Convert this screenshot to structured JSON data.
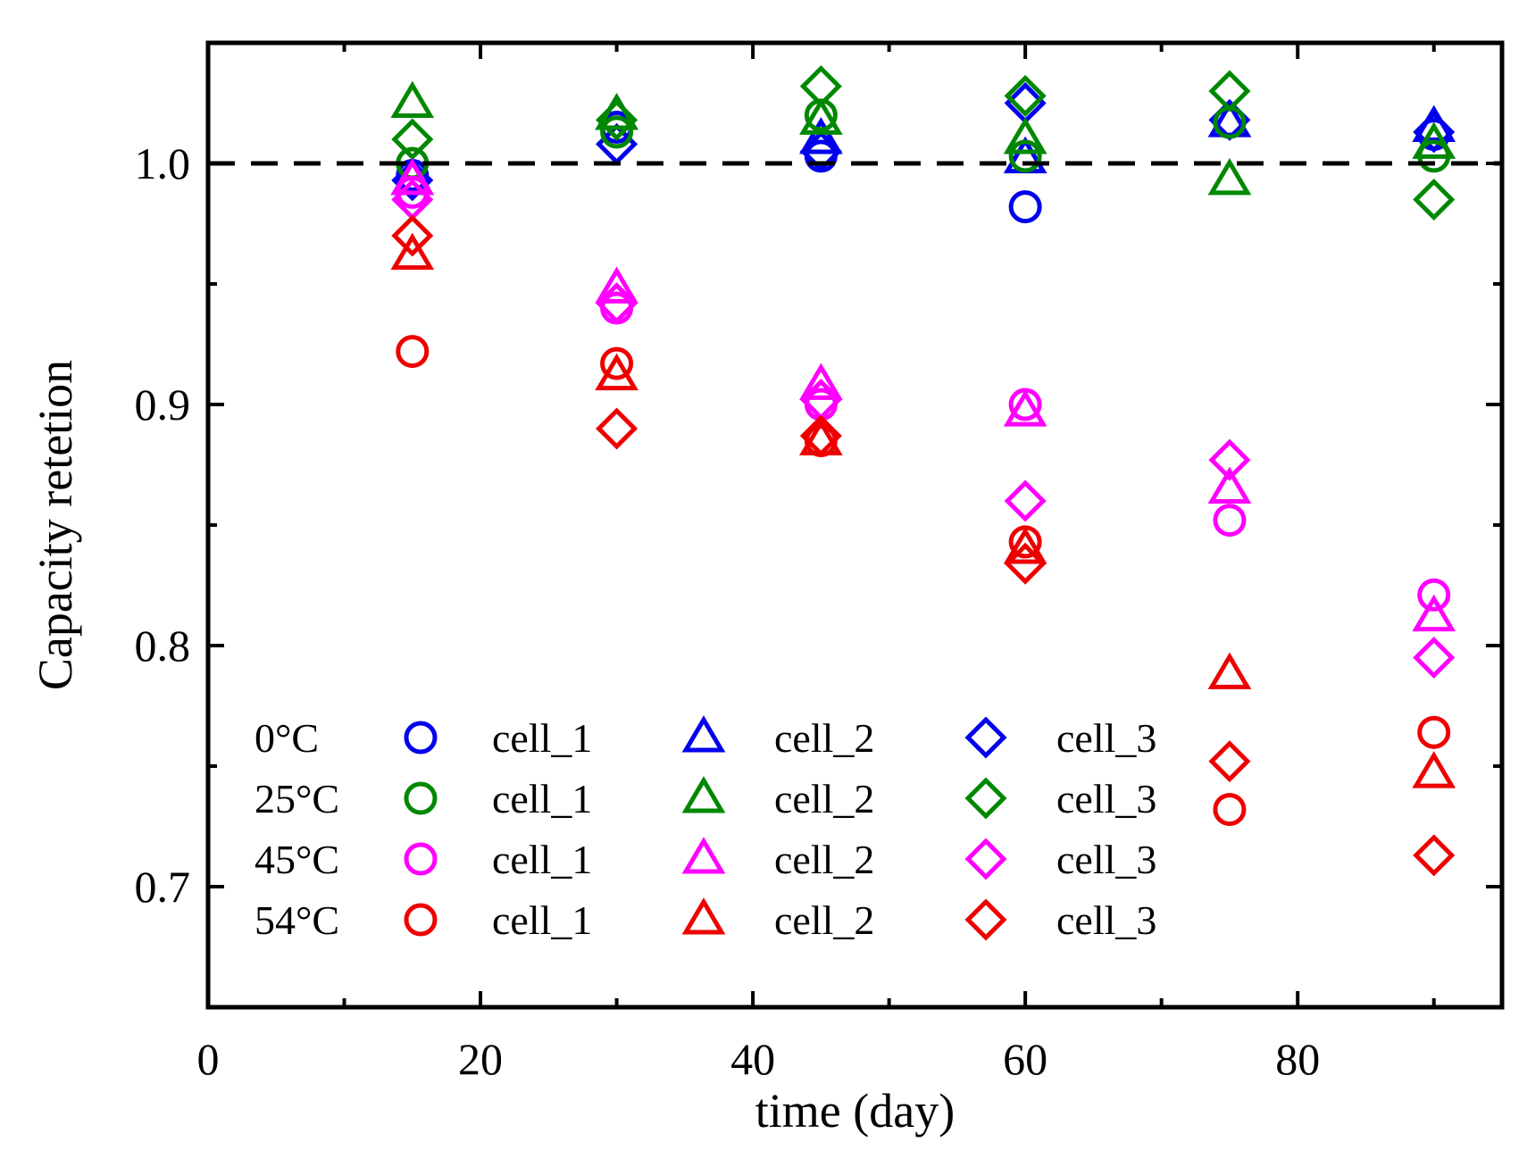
{
  "chart_data": {
    "type": "scatter",
    "title": "",
    "xlabel": "time (day)",
    "ylabel": "Capacity retetion",
    "xlim": [
      0,
      95
    ],
    "ylim": [
      0.65,
      1.05
    ],
    "xticks": [
      0,
      20,
      40,
      60,
      80
    ],
    "xtick_labels": [
      "0",
      "20",
      "40",
      "60",
      "80"
    ],
    "yticks": [
      0.7,
      0.8,
      0.9,
      1.0
    ],
    "ytick_labels": [
      "0.7",
      "0.8",
      "0.9",
      "1.0"
    ],
    "reference_line": {
      "y": 1.0,
      "style": "dashed",
      "color": "#000000"
    },
    "legend_location": "lower-left",
    "groups": [
      {
        "temperature": "0°C",
        "color": "#0000ee"
      },
      {
        "temperature": "25°C",
        "color": "#008800"
      },
      {
        "temperature": "45°C",
        "color": "#ff00ff"
      },
      {
        "temperature": "54°C",
        "color": "#ee0000"
      }
    ],
    "cells": [
      {
        "label": "cell_1",
        "marker": "circle"
      },
      {
        "label": "cell_2",
        "marker": "triangle"
      },
      {
        "label": "cell_3",
        "marker": "diamond"
      }
    ],
    "x": [
      15,
      30,
      45,
      60,
      75,
      90
    ],
    "series": [
      {
        "temperature": "0°C",
        "cell": "cell_1",
        "marker": "circle",
        "color": "#0000ee",
        "values": [
          0.995,
          1.015,
          1.003,
          0.982,
          1.017,
          1.012
        ]
      },
      {
        "temperature": "0°C",
        "cell": "cell_2",
        "marker": "triangle",
        "color": "#0000ee",
        "values": [
          0.993,
          1.02,
          1.01,
          1.002,
          1.017,
          1.015
        ]
      },
      {
        "temperature": "0°C",
        "cell": "cell_3",
        "marker": "diamond",
        "color": "#0000ee",
        "values": [
          0.993,
          1.008,
          1.005,
          1.025,
          1.018,
          1.013
        ]
      },
      {
        "temperature": "25°C",
        "cell": "cell_1",
        "marker": "circle",
        "color": "#008800",
        "values": [
          1.0,
          1.013,
          1.02,
          1.003,
          1.017,
          1.003
        ]
      },
      {
        "temperature": "25°C",
        "cell": "cell_2",
        "marker": "triangle",
        "color": "#008800",
        "values": [
          1.025,
          1.02,
          1.018,
          1.01,
          0.993,
          1.008
        ]
      },
      {
        "temperature": "25°C",
        "cell": "cell_3",
        "marker": "diamond",
        "color": "#008800",
        "values": [
          1.01,
          1.018,
          1.032,
          1.028,
          1.03,
          0.985
        ]
      },
      {
        "temperature": "45°C",
        "cell": "cell_1",
        "marker": "circle",
        "color": "#ff00ff",
        "values": [
          0.988,
          0.94,
          0.9,
          0.9,
          0.852,
          0.821
        ]
      },
      {
        "temperature": "45°C",
        "cell": "cell_2",
        "marker": "triangle",
        "color": "#ff00ff",
        "values": [
          0.993,
          0.948,
          0.908,
          0.897,
          0.865,
          0.812
        ]
      },
      {
        "temperature": "45°C",
        "cell": "cell_3",
        "marker": "diamond",
        "color": "#ff00ff",
        "values": [
          0.985,
          0.942,
          0.902,
          0.86,
          0.877,
          0.795
        ]
      },
      {
        "temperature": "54°C",
        "cell": "cell_1",
        "marker": "circle",
        "color": "#ee0000",
        "values": [
          0.922,
          0.917,
          0.885,
          0.843,
          0.732,
          0.764
        ]
      },
      {
        "temperature": "54°C",
        "cell": "cell_2",
        "marker": "triangle",
        "color": "#ee0000",
        "values": [
          0.962,
          0.912,
          0.885,
          0.84,
          0.788,
          0.747
        ]
      },
      {
        "temperature": "54°C",
        "cell": "cell_3",
        "marker": "diamond",
        "color": "#ee0000",
        "values": [
          0.97,
          0.89,
          0.887,
          0.834,
          0.752,
          0.713
        ]
      }
    ]
  }
}
